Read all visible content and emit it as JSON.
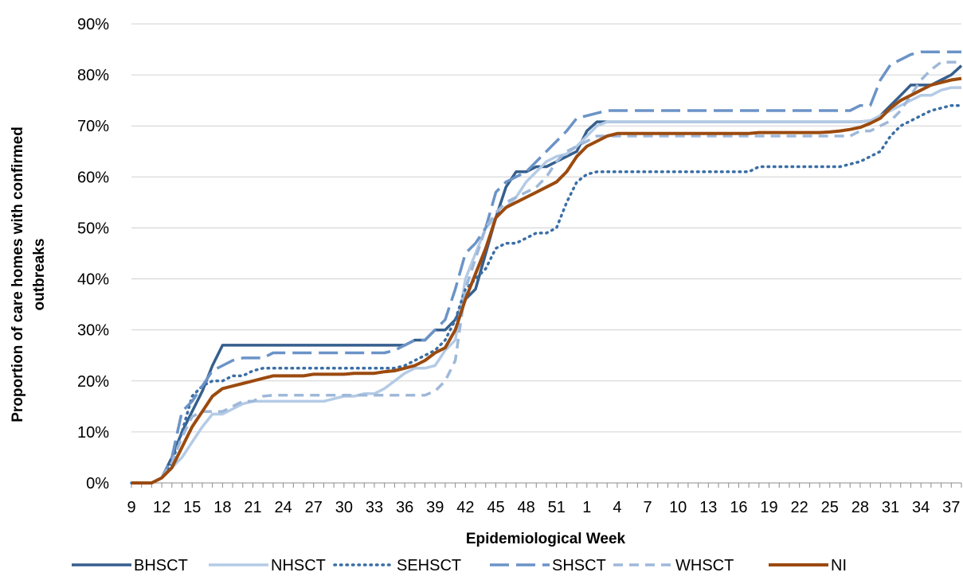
{
  "chart_data": {
    "type": "line",
    "title": "",
    "xlabel": "Epidemiological Week",
    "ylabel_lines": [
      "Proportion of care homes with confirmed",
      "outbreaks"
    ],
    "ylim": [
      0,
      90
    ],
    "yticks": [
      "0%",
      "10%",
      "20%",
      "30%",
      "40%",
      "50%",
      "60%",
      "70%",
      "80%",
      "90%"
    ],
    "x_weeks": [
      9,
      10,
      11,
      12,
      13,
      14,
      15,
      16,
      17,
      18,
      19,
      20,
      21,
      22,
      23,
      24,
      25,
      26,
      27,
      28,
      29,
      30,
      31,
      32,
      33,
      34,
      35,
      36,
      37,
      38,
      39,
      40,
      41,
      42,
      43,
      44,
      45,
      46,
      47,
      48,
      49,
      50,
      51,
      52,
      53,
      1,
      2,
      3,
      4,
      5,
      6,
      7,
      8,
      9,
      10,
      11,
      12,
      13,
      14,
      15,
      16,
      17,
      18,
      19,
      20,
      21,
      22,
      23,
      24,
      25,
      26,
      27,
      28,
      29,
      30,
      31,
      32,
      33,
      34,
      35,
      36,
      37,
      38
    ],
    "x_tick_labels": [
      "9",
      "12",
      "15",
      "18",
      "21",
      "24",
      "27",
      "30",
      "33",
      "36",
      "39",
      "42",
      "45",
      "48",
      "51",
      "1",
      "4",
      "7",
      "10",
      "13",
      "16",
      "19",
      "22",
      "25",
      "28",
      "31",
      "34",
      "37"
    ],
    "x_tick_indices": [
      0,
      3,
      6,
      9,
      12,
      15,
      18,
      21,
      24,
      27,
      30,
      33,
      36,
      39,
      42,
      45,
      48,
      51,
      54,
      57,
      60,
      63,
      66,
      69,
      72,
      75,
      78,
      81
    ],
    "grid": "horizontal",
    "legend_position": "bottom",
    "series": [
      {
        "name": "BHSCT",
        "color": "#355f8d",
        "dash": "solid",
        "values": [
          0,
          0,
          0,
          1,
          5,
          10,
          14,
          18,
          23,
          27,
          27,
          27,
          27,
          27,
          27,
          27,
          27,
          27,
          27,
          27,
          27,
          27,
          27,
          27,
          27,
          27,
          27,
          27,
          28,
          28,
          30,
          30,
          32,
          36,
          38,
          45,
          52,
          58,
          61,
          61,
          62,
          62,
          63,
          64,
          65,
          69,
          70.8,
          70.8,
          70.8,
          70.8,
          70.8,
          70.8,
          70.8,
          70.8,
          70.8,
          70.8,
          70.8,
          70.8,
          70.8,
          70.8,
          70.8,
          70.8,
          70.8,
          70.8,
          70.8,
          70.8,
          70.8,
          70.8,
          70.8,
          70.8,
          70.8,
          70.8,
          70.8,
          71,
          72,
          74,
          76,
          78,
          78,
          78,
          79,
          80,
          81.8
        ]
      },
      {
        "name": "NHSCT",
        "color": "#b4cbe6",
        "dash": "solid",
        "values": [
          0,
          0,
          0,
          1,
          3,
          5,
          8,
          11,
          13.5,
          13.5,
          14.5,
          15.5,
          16,
          16,
          16,
          16,
          16,
          16,
          16,
          16,
          16.5,
          17,
          17,
          17.5,
          17.5,
          18.5,
          20,
          21.5,
          22.5,
          22.5,
          23,
          26,
          28,
          40,
          45,
          50,
          52,
          54,
          56,
          59,
          61,
          63,
          64,
          64.5,
          66,
          68,
          70,
          70.8,
          70.8,
          70.8,
          70.8,
          70.8,
          70.8,
          70.8,
          70.8,
          70.8,
          70.8,
          70.8,
          70.8,
          70.8,
          70.8,
          70.8,
          70.8,
          70.8,
          70.8,
          70.8,
          70.8,
          70.8,
          70.8,
          70.8,
          70.8,
          70.8,
          70.8,
          71,
          72,
          73,
          74,
          75,
          76,
          76,
          77,
          77.5,
          77.5
        ]
      },
      {
        "name": "SEHSCT",
        "color": "#3a6ea5",
        "dash": "dot",
        "values": [
          0,
          0,
          0,
          1,
          4,
          10,
          17,
          19,
          20,
          20,
          21,
          21,
          22,
          22.5,
          22.5,
          22.5,
          22.5,
          22.5,
          22.5,
          22.5,
          22.5,
          22.5,
          22.5,
          22.5,
          22.5,
          22.5,
          22.5,
          23,
          24,
          25,
          26,
          28,
          32,
          38,
          40,
          42,
          46,
          47,
          47,
          48,
          49,
          49,
          50,
          55,
          59,
          60.5,
          61,
          61,
          61,
          61,
          61,
          61,
          61,
          61,
          61,
          61,
          61,
          61,
          61,
          61,
          61,
          61,
          62,
          62,
          62,
          62,
          62,
          62,
          62,
          62,
          62,
          62.5,
          63,
          64,
          65,
          68,
          70,
          71,
          72,
          73,
          73.5,
          74,
          74
        ]
      },
      {
        "name": "SHSCT",
        "color": "#6b93c7",
        "dash": "longdash",
        "values": [
          0,
          0,
          0,
          1,
          5,
          14,
          16,
          19,
          22,
          23,
          24,
          24.5,
          24.5,
          24.5,
          25.5,
          25.5,
          25.5,
          25.5,
          25.5,
          25.5,
          25.5,
          25.5,
          25.5,
          25.5,
          25.5,
          25.5,
          26,
          27,
          28,
          28,
          30,
          32,
          38,
          45,
          47,
          50,
          57,
          59,
          60,
          61,
          63,
          65,
          67,
          69,
          71.5,
          72,
          72.5,
          73,
          73,
          73,
          73,
          73,
          73,
          73,
          73,
          73,
          73,
          73,
          73,
          73,
          73,
          73,
          73,
          73,
          73,
          73,
          73,
          73,
          73,
          73,
          73,
          73,
          74,
          74,
          79,
          82,
          83,
          84,
          84.5,
          84.5,
          84.5,
          84.5,
          84.5
        ]
      },
      {
        "name": "WHSCT",
        "color": "#9fb8d9",
        "dash": "shortdash",
        "values": [
          0,
          0,
          0,
          1,
          4,
          9,
          13,
          14,
          14,
          14,
          15,
          16,
          16,
          17,
          17.2,
          17.2,
          17.2,
          17.2,
          17.2,
          17.2,
          17.2,
          17.2,
          17.2,
          17.2,
          17.2,
          17.2,
          17.2,
          17.2,
          17.2,
          17.2,
          18,
          20,
          24,
          38,
          44,
          50,
          53,
          55,
          56,
          57,
          58,
          60,
          63,
          65,
          66,
          67,
          68,
          68,
          68,
          68,
          68,
          68,
          68,
          68,
          68,
          68,
          68,
          68,
          68,
          68,
          68,
          68,
          68,
          68,
          68,
          68,
          68,
          68,
          68,
          68,
          68,
          68,
          69,
          69,
          70,
          71,
          73,
          76,
          79,
          81,
          82.5,
          82.5,
          82.5
        ]
      },
      {
        "name": "NI",
        "color": "#9b4a0f",
        "dash": "solid",
        "values": [
          0,
          0,
          0,
          1,
          3,
          7,
          11,
          14,
          17,
          18.5,
          19,
          19.5,
          20,
          20.5,
          21,
          21,
          21,
          21,
          21.3,
          21.3,
          21.3,
          21.3,
          21.5,
          21.5,
          21.5,
          21.8,
          22,
          22.5,
          23,
          24,
          25.5,
          26.5,
          30,
          36,
          41,
          46,
          52,
          54,
          55,
          56,
          57,
          58,
          59,
          61,
          64,
          66,
          67,
          68,
          68.5,
          68.5,
          68.5,
          68.5,
          68.5,
          68.5,
          68.5,
          68.5,
          68.5,
          68.5,
          68.5,
          68.5,
          68.5,
          68.5,
          68.7,
          68.7,
          68.7,
          68.7,
          68.7,
          68.7,
          68.7,
          68.8,
          69,
          69.3,
          69.7,
          70.5,
          71.5,
          73.5,
          75,
          76,
          77,
          78,
          78.5,
          79,
          79.3
        ]
      }
    ]
  }
}
